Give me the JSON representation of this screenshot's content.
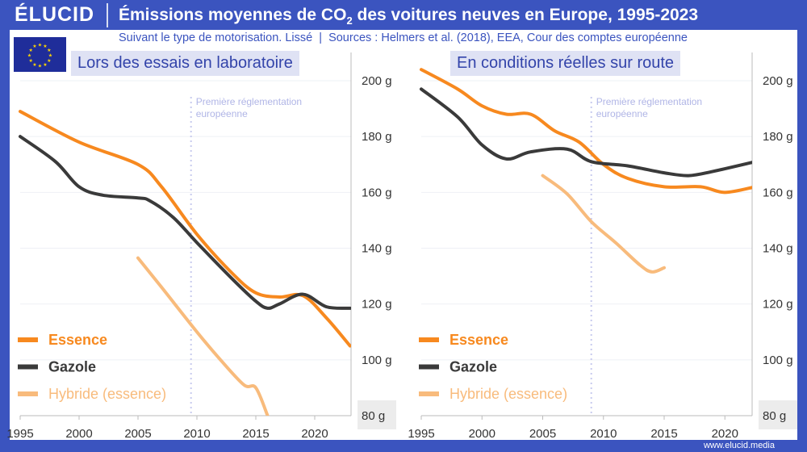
{
  "header": {
    "logo": "ÉLUCID",
    "title_pre": "Émissions moyennes de CO",
    "title_sub": "2",
    "title_post": " des voitures neuves en Europe, 1995-2023"
  },
  "subtitle": "Suivant le type de motorisation. Lissé  |  Sources : Helmers et al. (2018), EEA, Cour des comptes européenne",
  "footer": "www.elucid.media",
  "annotation": [
    "Première réglementation",
    "européenne"
  ],
  "colors": {
    "essence": "#f7891f",
    "gazole": "#3a3a3a",
    "hybride": "#f8bb7c",
    "accent": "#3b54bf"
  },
  "chart_data": [
    {
      "type": "line",
      "title": "Lors des essais en laboratoire",
      "xlim": [
        1995,
        2023
      ],
      "ylim": [
        80,
        200
      ],
      "x_ticks": [
        "1995",
        "2000",
        "2005",
        "2010",
        "2015",
        "2020"
      ],
      "y_ticks": [
        "200 g",
        "180 g",
        "160 g",
        "140 g",
        "120 g",
        "100 g",
        "80 g"
      ],
      "vline": 2009.5,
      "legend": "bottom-left",
      "series": [
        {
          "name": "Essence",
          "color": "#f7891f",
          "x": [
            1995,
            2000,
            2005,
            2007,
            2010,
            2013,
            2015,
            2017,
            2019,
            2021,
            2023
          ],
          "y": [
            189,
            178,
            170,
            162,
            145,
            131,
            124,
            122.5,
            123,
            115,
            105
          ]
        },
        {
          "name": "Gazole",
          "color": "#3a3a3a",
          "x": [
            1995,
            1998,
            2000,
            2002,
            2005,
            2006,
            2008,
            2010,
            2013,
            2015,
            2016,
            2017,
            2019,
            2021,
            2023
          ],
          "y": [
            180,
            171,
            162,
            159,
            158,
            157,
            151,
            142,
            129,
            121,
            118.5,
            120,
            123.5,
            119,
            118.5
          ]
        },
        {
          "name": "Hybride (essence)",
          "color": "#f8bb7c",
          "x": [
            2005,
            2007,
            2010,
            2012,
            2014,
            2015,
            2016
          ],
          "y": [
            136.5,
            126,
            110,
            100,
            91,
            90,
            80
          ]
        }
      ]
    },
    {
      "type": "line",
      "title": "En conditions réelles sur route",
      "xlim": [
        1995,
        2023
      ],
      "ylim": [
        80,
        200
      ],
      "x_ticks": [
        "1995",
        "2000",
        "2005",
        "2010",
        "2015",
        "2020"
      ],
      "y_ticks": [
        "200 g",
        "180 g",
        "160 g",
        "140 g",
        "120 g",
        "100 g",
        "80 g"
      ],
      "vline": 2009,
      "legend": "bottom-left",
      "series": [
        {
          "name": "Essence",
          "color": "#f7891f",
          "x": [
            1995,
            1998,
            2000,
            2002,
            2004,
            2006,
            2008,
            2010,
            2012,
            2015,
            2018,
            2020,
            2022.5
          ],
          "y": [
            204,
            197,
            191,
            188,
            188,
            182,
            178,
            170,
            165,
            162,
            162,
            160,
            162
          ]
        },
        {
          "name": "Gazole",
          "color": "#3a3a3a",
          "x": [
            1995,
            1998,
            2000,
            2002,
            2004,
            2007,
            2009,
            2012,
            2015,
            2017,
            2019,
            2022.5
          ],
          "y": [
            197,
            187,
            177,
            172,
            174.5,
            175.5,
            171,
            169.5,
            167,
            166,
            167.5,
            171
          ]
        },
        {
          "name": "Hybride (essence)",
          "color": "#f8bb7c",
          "x": [
            2005,
            2007,
            2009,
            2011,
            2013,
            2014,
            2015
          ],
          "y": [
            166,
            159.5,
            149.5,
            142,
            134,
            131.5,
            133
          ]
        }
      ]
    }
  ]
}
